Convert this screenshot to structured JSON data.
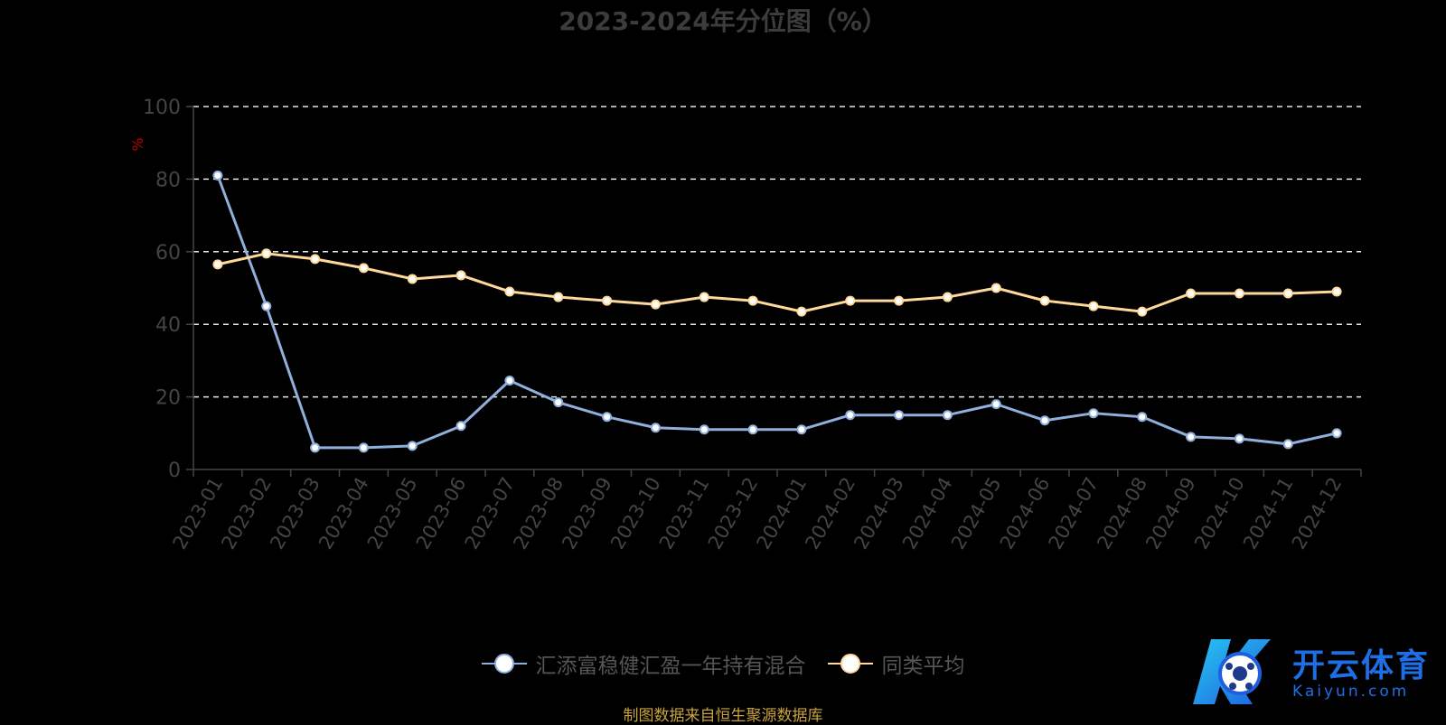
{
  "chart_data": {
    "type": "line",
    "title": "2023-2024年分位图（%）",
    "ylabel": "%",
    "ylim": [
      0,
      100
    ],
    "yticks": [
      0,
      20,
      40,
      60,
      80,
      100
    ],
    "grid": true,
    "legend_position": "bottom",
    "categories": [
      "2023-01",
      "2023-02",
      "2023-03",
      "2023-04",
      "2023-05",
      "2023-06",
      "2023-07",
      "2023-08",
      "2023-09",
      "2023-10",
      "2023-11",
      "2023-12",
      "2024-01",
      "2024-02",
      "2024-03",
      "2024-04",
      "2024-05",
      "2024-06",
      "2024-07",
      "2024-08",
      "2024-09",
      "2024-10",
      "2024-11",
      "2024-12"
    ],
    "series": [
      {
        "name": "汇添富稳健汇盈一年持有混合",
        "color": "#8fafdc",
        "values": [
          81,
          45,
          6,
          6,
          6.5,
          12,
          24.5,
          18.5,
          14.5,
          11.5,
          11,
          11,
          11,
          15,
          15,
          15,
          18,
          13.5,
          15.5,
          14.5,
          9,
          8.5,
          7,
          10
        ]
      },
      {
        "name": "同类平均",
        "color": "#ffd99a",
        "values": [
          56.5,
          59.5,
          58,
          55.5,
          52.5,
          53.5,
          49,
          47.5,
          46.5,
          45.5,
          47.5,
          46.5,
          43.5,
          46.5,
          46.5,
          47.5,
          50,
          46.5,
          45,
          43.5,
          48.5,
          48.5,
          48.5,
          49
        ]
      }
    ]
  },
  "source_note": "制图数据来自恒生聚源数据库",
  "watermark": {
    "brand": "开云体育",
    "domain": "Kaiyun.com"
  }
}
